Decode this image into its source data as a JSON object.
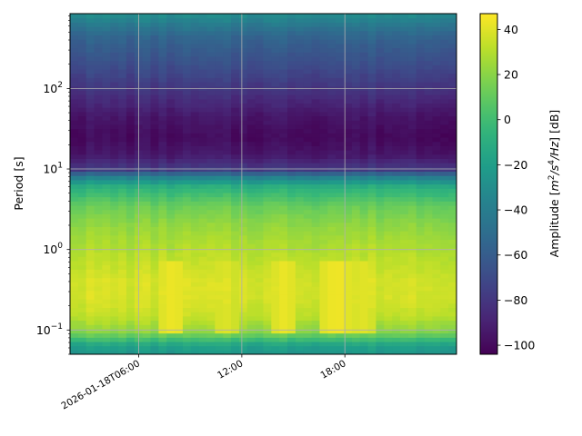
{
  "chart_data": {
    "type": "heatmap",
    "title": "",
    "ylabel": "Period [s]",
    "colorbar_label": "Amplitude [m²/s⁴/Hz] [dB]",
    "colorbar_label_parts": {
      "prefix": "Amplitude [",
      "m": "m",
      "s": "s",
      "hz": "Hz",
      "exp2": "2",
      "exp4": "4",
      "slash": "/",
      "suffix": "] [dB]"
    },
    "colormap": "viridis",
    "x_axis": {
      "type": "time",
      "range": [
        "2026-01-18T02:00:00",
        "2026-01-19T00:30:00"
      ],
      "ticks": [
        {
          "label": "2026-01-18T06:00",
          "value": "2026-01-18T06:00:00"
        },
        {
          "label": "12:00",
          "value": "2026-01-18T12:00:00"
        },
        {
          "label": "18:00",
          "value": "2026-01-18T18:00:00"
        }
      ]
    },
    "y_axis": {
      "scale": "log",
      "range": [
        0.05,
        850
      ],
      "ticks": [
        {
          "label_base": "10",
          "label_exp": "−1",
          "value": 0.1
        },
        {
          "label_base": "10",
          "label_exp": "0",
          "value": 1
        },
        {
          "label_base": "10",
          "label_exp": "1",
          "value": 10
        },
        {
          "label_base": "10",
          "label_exp": "2",
          "value": 100
        }
      ]
    },
    "colorbar": {
      "range": [
        -104,
        47
      ],
      "ticks": [
        "40",
        "20",
        "0",
        "−20",
        "−40",
        "−60",
        "−80",
        "−100"
      ],
      "tick_values": [
        40,
        20,
        0,
        -20,
        -40,
        -60,
        -80,
        -100
      ]
    },
    "grid": true,
    "period_profile_db": [
      {
        "period": 0.05,
        "db": -25
      },
      {
        "period": 0.065,
        "db": -18
      },
      {
        "period": 0.08,
        "db": 5
      },
      {
        "period": 0.1,
        "db": 22
      },
      {
        "period": 0.15,
        "db": 33
      },
      {
        "period": 0.25,
        "db": 38
      },
      {
        "period": 0.4,
        "db": 38
      },
      {
        "period": 0.7,
        "db": 33
      },
      {
        "period": 1,
        "db": 30
      },
      {
        "period": 2,
        "db": 22
      },
      {
        "period": 3.5,
        "db": 12
      },
      {
        "period": 6,
        "db": -8
      },
      {
        "period": 8,
        "db": -38
      },
      {
        "period": 10,
        "db": -78
      },
      {
        "period": 15,
        "db": -94
      },
      {
        "period": 25,
        "db": -100
      },
      {
        "period": 45,
        "db": -95
      },
      {
        "period": 90,
        "db": -82
      },
      {
        "period": 200,
        "db": -68
      },
      {
        "period": 450,
        "db": -55
      },
      {
        "period": 850,
        "db": -30
      }
    ],
    "bursts": [
      {
        "time": "2026-01-18T08:00:00",
        "db": 44
      },
      {
        "time": "2026-01-18T11:00:00",
        "db": 40
      },
      {
        "time": "2026-01-18T14:30:00",
        "db": 43
      },
      {
        "time": "2026-01-18T17:30:00",
        "db": 45
      },
      {
        "time": "2026-01-18T19:00:00",
        "db": 41
      }
    ]
  }
}
